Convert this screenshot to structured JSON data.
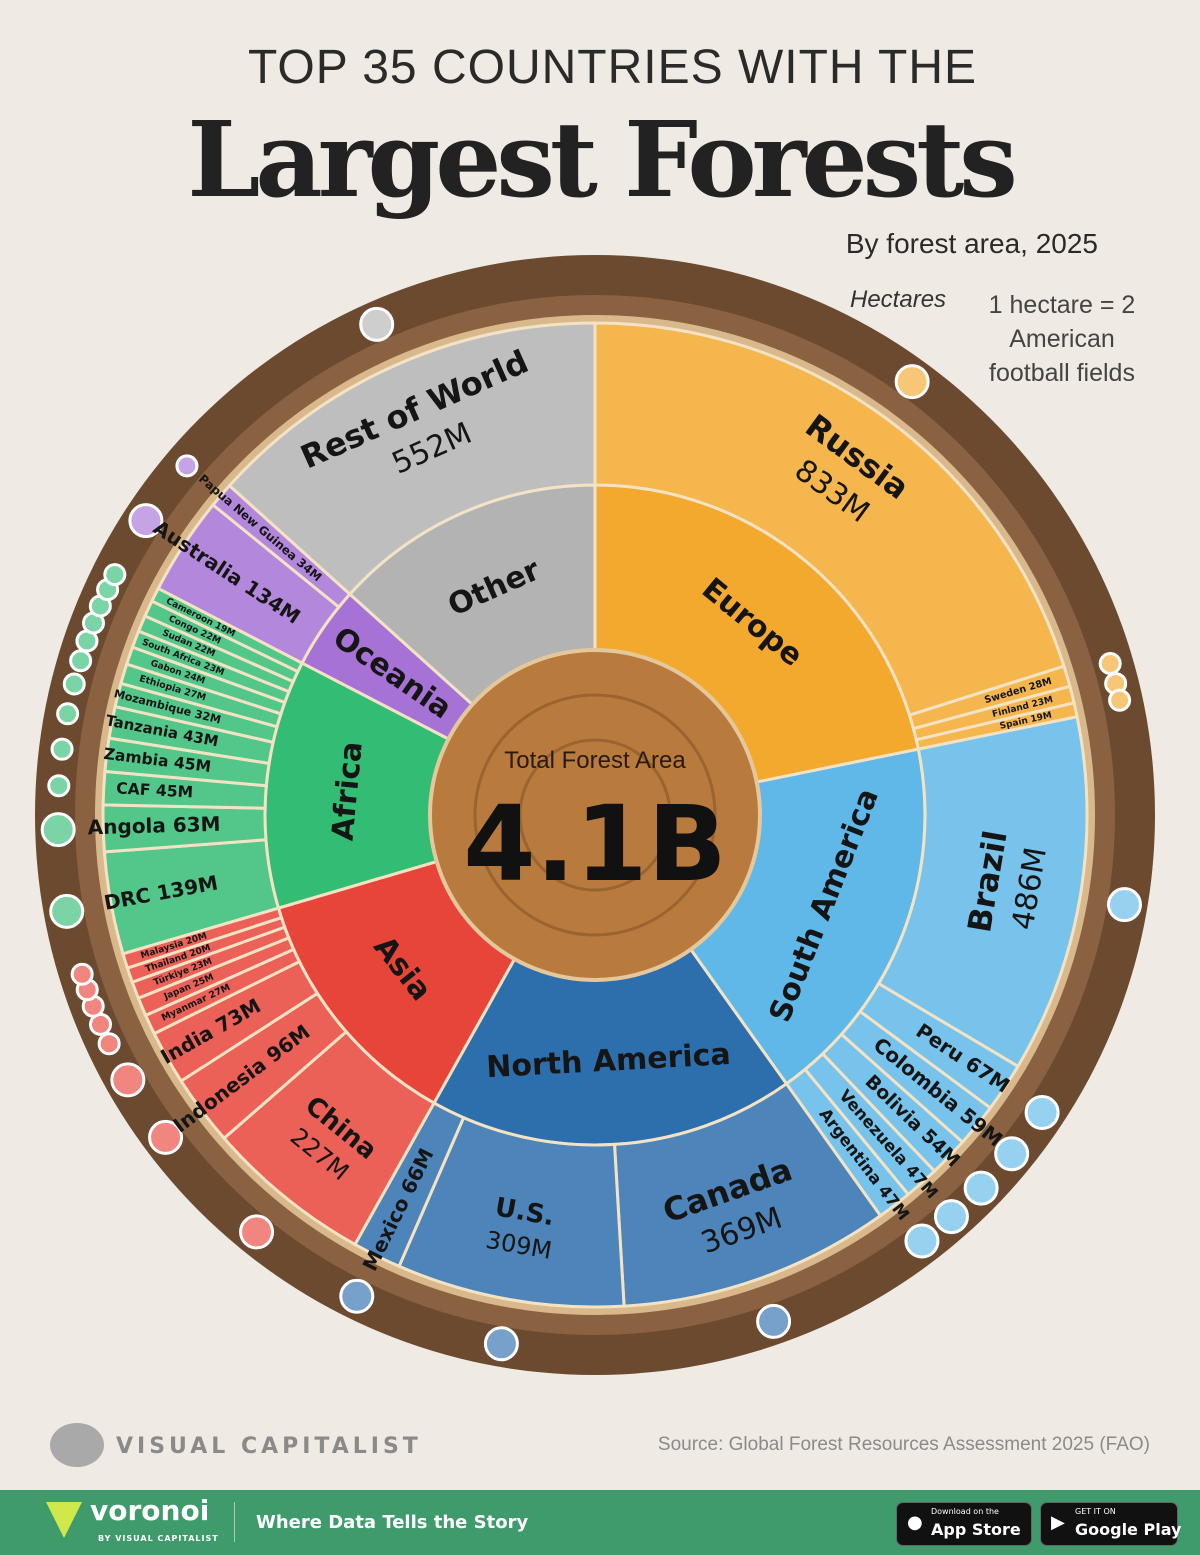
{
  "header": {
    "title_line1": "TOP 35 COUNTRIES WITH THE",
    "title_line2": "Largest Forests",
    "subtitle": "By forest area, 2025",
    "unit_note": "Hectares",
    "conversion_note": "1 hectare = 2 American football fields"
  },
  "center": {
    "label": "Total Forest Area",
    "value": "4.1B"
  },
  "chart_data": {
    "type": "sunburst",
    "title": "Largest Forests",
    "unit": "million hectares",
    "total_label": "4.1B",
    "groups": [
      {
        "name": "Europe",
        "color": "#f2a92e",
        "countries": [
          {
            "name": "Russia",
            "value": 833,
            "label": "833M"
          },
          {
            "name": "Sweden",
            "value": 28,
            "label": "28M"
          },
          {
            "name": "Finland",
            "value": 23,
            "label": "23M"
          },
          {
            "name": "Spain",
            "value": 19,
            "label": "19M"
          }
        ]
      },
      {
        "name": "South America",
        "color": "#5fb8e8",
        "countries": [
          {
            "name": "Brazil",
            "value": 486,
            "label": "486M"
          },
          {
            "name": "Peru",
            "value": 67,
            "label": "67M"
          },
          {
            "name": "Colombia",
            "value": 59,
            "label": "59M"
          },
          {
            "name": "Bolivia",
            "value": 54,
            "label": "54M"
          },
          {
            "name": "Venezuela",
            "value": 47,
            "label": "47M"
          },
          {
            "name": "Argentina",
            "value": 47,
            "label": "47M"
          }
        ]
      },
      {
        "name": "North America",
        "color": "#2d6ead",
        "countries": [
          {
            "name": "Canada",
            "value": 369,
            "label": "369M"
          },
          {
            "name": "U.S.",
            "value": 309,
            "label": "309M"
          },
          {
            "name": "Mexico",
            "value": 66,
            "label": "66M"
          }
        ]
      },
      {
        "name": "Asia",
        "color": "#e8453a",
        "countries": [
          {
            "name": "China",
            "value": 227,
            "label": "227M"
          },
          {
            "name": "Indonesia",
            "value": 96,
            "label": "96M"
          },
          {
            "name": "India",
            "value": 73,
            "label": "73M"
          },
          {
            "name": "Myanmar",
            "value": 27,
            "label": "27M"
          },
          {
            "name": "Japan",
            "value": 25,
            "label": "25M"
          },
          {
            "name": "Türkiye",
            "value": 23,
            "label": "23M"
          },
          {
            "name": "Thailand",
            "value": 20,
            "label": "20M"
          },
          {
            "name": "Malaysia",
            "value": 20,
            "label": "20M"
          }
        ]
      },
      {
        "name": "Africa",
        "color": "#33bd74",
        "countries": [
          {
            "name": "DRC",
            "value": 139,
            "label": "139M"
          },
          {
            "name": "Angola",
            "value": 63,
            "label": "63M"
          },
          {
            "name": "CAF",
            "value": 45,
            "label": "45M"
          },
          {
            "name": "Zambia",
            "value": 45,
            "label": "45M"
          },
          {
            "name": "Tanzania",
            "value": 43,
            "label": "43M"
          },
          {
            "name": "Mozambique",
            "value": 32,
            "label": "32M"
          },
          {
            "name": "Ethiopia",
            "value": 27,
            "label": "27M"
          },
          {
            "name": "Gabon",
            "value": 24,
            "label": "24M"
          },
          {
            "name": "South Africa",
            "value": 23,
            "label": "23M"
          },
          {
            "name": "Sudan",
            "value": 22,
            "label": "22M"
          },
          {
            "name": "Congo",
            "value": 22,
            "label": "22M"
          },
          {
            "name": "Cameroon",
            "value": 19,
            "label": "19M"
          }
        ]
      },
      {
        "name": "Oceania",
        "color": "#a672d6",
        "countries": [
          {
            "name": "Australia",
            "value": 134,
            "label": "134M"
          },
          {
            "name": "Papua New Guinea",
            "value": 34,
            "label": "34M"
          }
        ]
      },
      {
        "name": "Other",
        "color": "#b3b3b3",
        "countries": [
          {
            "name": "Rest of World",
            "value": 552,
            "label": "552M"
          }
        ]
      }
    ]
  },
  "footer": {
    "brand": "VISUAL CAPITALIST",
    "source": "Source: Global Forest Resources Assessment 2025 (FAO)",
    "voronoi": "voronoi",
    "voronoi_by": "BY VISUAL CAPITALIST",
    "tagline": "Where Data Tells the Story",
    "appstore_small": "Download on the",
    "appstore_big": "App Store",
    "googleplay_small": "GET IT ON",
    "googleplay_big": "Google Play"
  }
}
